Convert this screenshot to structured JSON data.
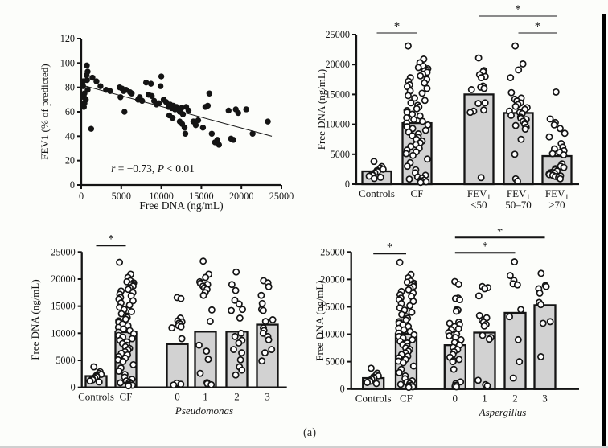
{
  "figure": {
    "caption": "(a)",
    "colors": {
      "bar_fill": "#d2d2d2",
      "ink": "#141414",
      "point_fill": "#ffffff",
      "sig_gray": "#8a8a8a"
    }
  },
  "chart_data": [
    {
      "id": "fev1_scatter",
      "type": "scatter",
      "title": "",
      "xlabel": "Free DNA (ng/mL)",
      "ylabel": "FEV1 (% of predicted)",
      "xlim": [
        0,
        25000
      ],
      "ylim": [
        0,
        120
      ],
      "xticks": [
        0,
        5000,
        10000,
        15000,
        20000,
        25000
      ],
      "yticks": [
        0,
        20,
        40,
        60,
        80,
        100,
        120
      ],
      "grid": false,
      "annotation_parts": [
        {
          "text": "r",
          "italic": true
        },
        {
          "text": " = −0.73, ",
          "italic": false
        },
        {
          "text": "P",
          "italic": true
        },
        {
          "text": " < 0.01",
          "italic": false
        }
      ],
      "regression_line": {
        "x1": 0,
        "y1": 82,
        "x2": 23800,
        "y2": 40
      },
      "points": [
        [
          700,
          98
        ],
        [
          800,
          93
        ],
        [
          670,
          90
        ],
        [
          230,
          85
        ],
        [
          730,
          86
        ],
        [
          1400,
          88
        ],
        [
          1900,
          85
        ],
        [
          230,
          81
        ],
        [
          800,
          78
        ],
        [
          400,
          75
        ],
        [
          330,
          72
        ],
        [
          570,
          70
        ],
        [
          400,
          67
        ],
        [
          330,
          64
        ],
        [
          1240,
          46
        ],
        [
          2400,
          81
        ],
        [
          3100,
          78
        ],
        [
          3600,
          77
        ],
        [
          4800,
          80
        ],
        [
          5100,
          79
        ],
        [
          5300,
          77
        ],
        [
          5600,
          78
        ],
        [
          6100,
          76
        ],
        [
          6300,
          75
        ],
        [
          4900,
          72
        ],
        [
          5400,
          60
        ],
        [
          7100,
          70
        ],
        [
          7300,
          72
        ],
        [
          7600,
          69
        ],
        [
          8100,
          84
        ],
        [
          8700,
          83
        ],
        [
          8400,
          74
        ],
        [
          8800,
          73
        ],
        [
          9100,
          69
        ],
        [
          9400,
          66
        ],
        [
          9700,
          67
        ],
        [
          10000,
          89
        ],
        [
          9900,
          81
        ],
        [
          10300,
          70
        ],
        [
          10600,
          68
        ],
        [
          10900,
          64
        ],
        [
          11100,
          66
        ],
        [
          11300,
          63
        ],
        [
          11500,
          65
        ],
        [
          11700,
          62
        ],
        [
          11900,
          64
        ],
        [
          12100,
          62
        ],
        [
          12300,
          60
        ],
        [
          12500,
          63
        ],
        [
          12700,
          58
        ],
        [
          11000,
          57
        ],
        [
          11400,
          55
        ],
        [
          12300,
          52
        ],
        [
          12600,
          50
        ],
        [
          12900,
          47
        ],
        [
          13100,
          64
        ],
        [
          13400,
          61
        ],
        [
          13000,
          42
        ],
        [
          14000,
          52
        ],
        [
          14300,
          49
        ],
        [
          14600,
          53
        ],
        [
          15200,
          47
        ],
        [
          15500,
          64
        ],
        [
          15800,
          65
        ],
        [
          16000,
          75
        ],
        [
          16300,
          42
        ],
        [
          16700,
          35
        ],
        [
          17000,
          37
        ],
        [
          17200,
          33
        ],
        [
          18400,
          61
        ],
        [
          18700,
          38
        ],
        [
          19000,
          37
        ],
        [
          19300,
          62
        ],
        [
          19600,
          59
        ],
        [
          20600,
          62
        ],
        [
          21400,
          42
        ],
        [
          23300,
          52
        ]
      ]
    },
    {
      "id": "fev1_groups",
      "type": "bar-scatter",
      "title": "",
      "ylabel": "Free DNA (ng/mL)",
      "ylim": [
        0,
        25000
      ],
      "yticks": [
        0,
        5000,
        10000,
        15000,
        20000,
        25000
      ],
      "categories": [
        {
          "text": "Controls"
        },
        {
          "text": "CF"
        },
        {
          "text": "FEV",
          "sub": "1",
          "line2": "≤50"
        },
        {
          "text": "FEV",
          "sub": "1",
          "line2": "50–70"
        },
        {
          "text": "FEV",
          "sub": "1",
          "line2": "≥70"
        }
      ],
      "bars": [
        2150,
        10200,
        15000,
        11900,
        4700
      ],
      "points": [
        [
          3800,
          2950,
          2700,
          2500,
          2300,
          2100,
          1900,
          1700,
          1500,
          1350,
          1150,
          950
        ],
        [
          23100,
          20900,
          20300,
          19700,
          19500,
          19300,
          19100,
          18900,
          18700,
          18400,
          18100,
          17800,
          17500,
          17200,
          16900,
          16600,
          16300,
          16000,
          15600,
          15200,
          14800,
          14400,
          14000,
          13600,
          13200,
          12900,
          12600,
          12300,
          12000,
          11700,
          11400,
          11100,
          10800,
          10500,
          10200,
          9900,
          9600,
          9300,
          9000,
          8700,
          8400,
          8100,
          7800,
          7500,
          7200,
          6900,
          6600,
          6300,
          6000,
          5700,
          5400,
          5100,
          4800,
          4200,
          3600,
          3000,
          2400,
          1900,
          1500,
          1200,
          1000,
          850,
          700,
          600,
          500,
          400,
          300
        ],
        [
          21100,
          19000,
          18800,
          18300,
          18000,
          17800,
          16400,
          16200,
          16000,
          15800,
          13600,
          13500,
          12400,
          12200,
          12000,
          1100
        ],
        [
          23100,
          20100,
          19100,
          17800,
          15300,
          14400,
          14200,
          13900,
          13600,
          13300,
          13000,
          12800,
          12500,
          12200,
          12000,
          11800,
          11500,
          11200,
          11000,
          10800,
          10500,
          10200,
          10000,
          9800,
          9500,
          9200,
          7500,
          5000,
          900,
          500
        ],
        [
          15400,
          10900,
          10300,
          9900,
          9300,
          8500,
          7900,
          6800,
          6200,
          5900,
          5600,
          5300,
          5100,
          4900,
          3400,
          3000,
          2800,
          2600,
          2400,
          2200,
          2000,
          1900,
          1800,
          1700,
          1600,
          1500,
          1400,
          1300,
          1100,
          900
        ]
      ],
      "significance": [
        {
          "from": 0,
          "to": 1,
          "label": "*",
          "dy": -2
        },
        {
          "from": 2,
          "to": 4,
          "label": "*",
          "dy": -23
        },
        {
          "from": 3,
          "to": 4,
          "label": "*",
          "dy": -2
        }
      ]
    },
    {
      "id": "pseudomonas",
      "type": "bar-scatter",
      "title": "",
      "ylabel": "Free DNA (ng/mL)",
      "group_label": "Pseudomonas",
      "ylim": [
        0,
        25000
      ],
      "yticks": [
        0,
        5000,
        10000,
        15000,
        20000,
        25000
      ],
      "categories": [
        {
          "text": "Controls"
        },
        {
          "text": "CF"
        },
        {
          "text": "0"
        },
        {
          "text": "1"
        },
        {
          "text": "2"
        },
        {
          "text": "3"
        }
      ],
      "bars": [
        2100,
        10200,
        8000,
        10300,
        10300,
        11600
      ],
      "points": [
        [
          3800,
          2900,
          2600,
          2400,
          2200,
          2000,
          1800,
          1600,
          1400,
          1200,
          1000
        ],
        [
          23100,
          20900,
          20300,
          19700,
          19500,
          19300,
          19100,
          18900,
          18700,
          18400,
          18100,
          17800,
          17500,
          17200,
          16900,
          16600,
          16300,
          16000,
          15600,
          15200,
          14800,
          14400,
          14000,
          13600,
          13200,
          12900,
          12600,
          12300,
          12000,
          11700,
          11400,
          11100,
          10800,
          10500,
          10200,
          9900,
          9600,
          9300,
          9000,
          8700,
          8400,
          8100,
          7800,
          7500,
          7200,
          6900,
          6600,
          6300,
          6000,
          5700,
          5400,
          5100,
          4800,
          4200,
          3600,
          3000,
          2400,
          1900,
          1500,
          1200,
          1000,
          850,
          700,
          600,
          500,
          400,
          300
        ],
        [
          16600,
          16400,
          12800,
          12300,
          12100,
          11900,
          11700,
          11400,
          11200,
          11000,
          9000,
          800,
          600,
          450
        ],
        [
          23300,
          20900,
          20300,
          19500,
          19200,
          19000,
          18700,
          18400,
          18100,
          17500,
          17000,
          14300,
          12200,
          7800,
          6700,
          5200,
          2600,
          900,
          700,
          500
        ],
        [
          21300,
          19000,
          17900,
          16100,
          15400,
          14400,
          14200,
          12800,
          10000,
          9400,
          8700,
          8200,
          7000,
          6400,
          5100,
          3800,
          3200,
          2300
        ],
        [
          19700,
          19300,
          18600,
          17000,
          15500,
          14400,
          14200,
          12500,
          12200,
          11000,
          10500,
          10000,
          9400,
          8800,
          7000,
          6400,
          4900
        ]
      ],
      "significance": [
        {
          "from": 0,
          "to": 1,
          "label": "*",
          "dy": -8
        }
      ]
    },
    {
      "id": "aspergillus",
      "type": "bar-scatter",
      "title": "",
      "ylabel": "Free DNA (ng/mL)",
      "group_label": "Aspergillus",
      "ylim": [
        0,
        25000
      ],
      "yticks": [
        0,
        5000,
        10000,
        15000,
        20000,
        25000
      ],
      "categories": [
        {
          "text": "Controls"
        },
        {
          "text": "CF"
        },
        {
          "text": "0"
        },
        {
          "text": "1"
        },
        {
          "text": "2"
        },
        {
          "text": "3"
        }
      ],
      "bars": [
        2000,
        10100,
        8000,
        10300,
        13900,
        15300
      ],
      "points": [
        [
          3800,
          2900,
          2600,
          2400,
          2200,
          2000,
          1800,
          1600,
          1400,
          1200,
          1000
        ],
        [
          23100,
          20900,
          20300,
          19700,
          19500,
          19300,
          19100,
          18900,
          18700,
          18400,
          18100,
          17800,
          17500,
          17200,
          16900,
          16600,
          16300,
          16000,
          15600,
          15200,
          14800,
          14400,
          14000,
          13600,
          13200,
          12900,
          12600,
          12300,
          12000,
          11700,
          11400,
          11100,
          10800,
          10500,
          10200,
          9900,
          9600,
          9300,
          9000,
          8700,
          8400,
          8100,
          7800,
          7500,
          7200,
          6900,
          6600,
          6300,
          6000,
          5700,
          5400,
          5100,
          4800,
          4200,
          3600,
          3000,
          2400,
          1900,
          1500,
          1200,
          1000,
          850,
          700,
          600,
          500,
          400,
          300
        ],
        [
          19600,
          19100,
          16600,
          16500,
          16300,
          14500,
          14400,
          14200,
          12200,
          12000,
          11800,
          11400,
          11000,
          10800,
          10300,
          10000,
          9700,
          9400,
          9000,
          8500,
          8000,
          7600,
          7200,
          6800,
          6300,
          5800,
          5400,
          5200,
          5000,
          3600,
          1300,
          1000,
          700,
          500,
          400
        ],
        [
          18700,
          18500,
          18300,
          17000,
          13400,
          13000,
          12500,
          12200,
          11800,
          11500,
          9800,
          9400,
          9100,
          1600,
          800,
          600
        ],
        [
          23200,
          20700,
          19800,
          19200,
          19000,
          14500,
          13200,
          9000,
          5000,
          2000
        ],
        [
          21100,
          18900,
          18700,
          18300,
          17500,
          15800,
          15400,
          12300,
          12000,
          5900
        ]
      ],
      "significance": [
        {
          "from": 0,
          "to": 1,
          "label": "*",
          "dy": 2
        },
        {
          "from": 2,
          "to": 4,
          "label": "*",
          "dy": 1
        },
        {
          "from": 2,
          "to": 5,
          "label": "*",
          "dy": -18
        }
      ]
    }
  ]
}
